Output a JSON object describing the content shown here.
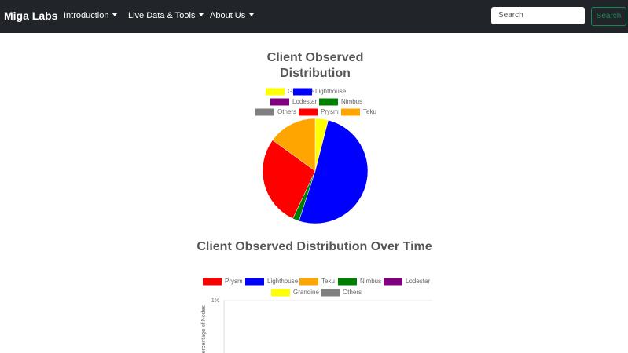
{
  "navbar": {
    "brand": "Miga Labs",
    "menu": [
      "Introduction",
      "Live Data & Tools",
      "About Us"
    ],
    "search_placeholder": "Search",
    "search_button": "Search"
  },
  "chart_data": [
    {
      "type": "pie",
      "title": "Client Observed Distribution",
      "categories": [
        "Grandine",
        "Lighthouse",
        "Lodestar",
        "Nimbus",
        "Others",
        "Prysm",
        "Teku"
      ],
      "values": [
        4,
        51,
        0,
        2,
        0,
        28,
        15
      ],
      "colors": [
        "#ffff00",
        "#0000ff",
        "#800080",
        "#008000",
        "#808080",
        "#ff0000",
        "#ffa500"
      ],
      "legend": "top"
    },
    {
      "type": "line",
      "title": "Client Observed Distribution Over Time",
      "ylabel": "Percentage of Nodes",
      "yticks": [
        {
          "value": 1,
          "label": "1%"
        }
      ],
      "legend": "top",
      "series": [
        {
          "name": "Prysm",
          "color": "#ff0000"
        },
        {
          "name": "Lighthouse",
          "color": "#0000ff"
        },
        {
          "name": "Teku",
          "color": "#ffa500"
        },
        {
          "name": "Nimbus",
          "color": "#008000"
        },
        {
          "name": "Lodestar",
          "color": "#800080"
        },
        {
          "name": "Grandine",
          "color": "#ffff00"
        },
        {
          "name": "Others",
          "color": "#808080"
        }
      ]
    }
  ]
}
